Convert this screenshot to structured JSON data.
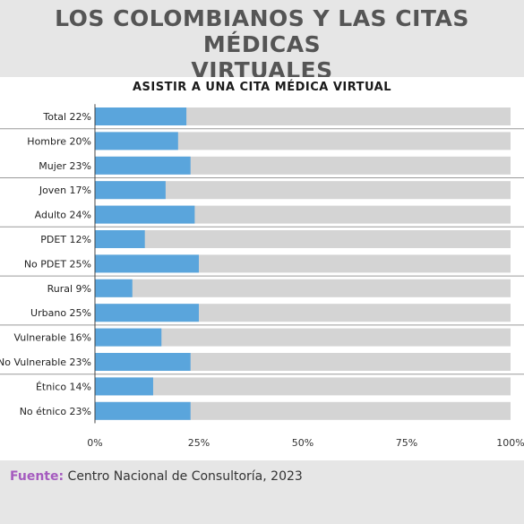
{
  "title_line1": "LOS COLOMBIANOS Y LAS CITAS MÉDICAS",
  "title_line2": "VIRTUALES",
  "source_label": "Fuente:",
  "source_text": "Centro Nacional de Consultoría, 2023",
  "colors": {
    "bar": "#5aa5dc",
    "track": "#d4d4d4",
    "background": "#e6e6e6",
    "panel": "#ffffff",
    "source_label": "#a55bbf"
  },
  "chart_data": {
    "type": "bar",
    "orientation": "horizontal",
    "title": "ASISTIR A UNA CITA MÉDICA VIRTUAL",
    "categories": [
      "Total 22%",
      "Hombre 20%",
      "Mujer 23%",
      "Joven 17%",
      "Adulto 24%",
      "PDET 12%",
      "No PDET 25%",
      "Rural 9%",
      "Urbano 25%",
      "Vulnerable 16%",
      "No Vulnerable 23%",
      "Étnico 14%",
      "No étnico 23%"
    ],
    "values": [
      22,
      20,
      23,
      17,
      24,
      12,
      25,
      9,
      25,
      16,
      23,
      14,
      23
    ],
    "groups": [
      [
        0
      ],
      [
        1,
        2
      ],
      [
        3,
        4
      ],
      [
        5,
        6
      ],
      [
        7,
        8
      ],
      [
        9,
        10
      ],
      [
        11,
        12
      ]
    ],
    "xlim": [
      0,
      100
    ],
    "xticks": [
      "0%",
      "25%",
      "50%",
      "75%",
      "100%"
    ],
    "grid": false
  }
}
